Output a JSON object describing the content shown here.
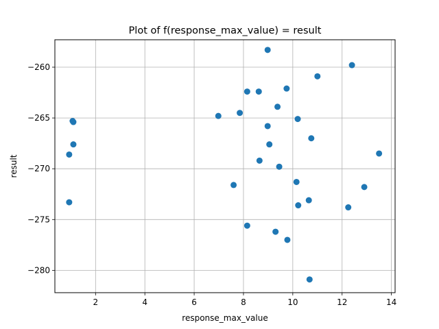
{
  "chart_data": {
    "type": "scatter",
    "title": "Plot of f(response_max_value) = result",
    "xlabel": "response_max_value",
    "ylabel": "result",
    "xlim": [
      0.35,
      14.15
    ],
    "ylim": [
      -282.2,
      -257.3
    ],
    "xticks": [
      2,
      4,
      6,
      8,
      10,
      12,
      14
    ],
    "yticks": [
      -280,
      -275,
      -270,
      -265,
      -260
    ],
    "grid": true,
    "color": "#1f77b4",
    "points": [
      {
        "x": 8.98,
        "y": -258.3
      },
      {
        "x": 12.4,
        "y": -259.8
      },
      {
        "x": 11.0,
        "y": -260.9
      },
      {
        "x": 8.15,
        "y": -262.4
      },
      {
        "x": 8.62,
        "y": -262.4
      },
      {
        "x": 9.75,
        "y": -262.1
      },
      {
        "x": 9.38,
        "y": -263.9
      },
      {
        "x": 1.07,
        "y": -265.3
      },
      {
        "x": 1.1,
        "y": -265.4
      },
      {
        "x": 6.98,
        "y": -264.8
      },
      {
        "x": 7.85,
        "y": -264.5
      },
      {
        "x": 10.2,
        "y": -265.1
      },
      {
        "x": 8.98,
        "y": -265.8
      },
      {
        "x": 10.75,
        "y": -267.0
      },
      {
        "x": 1.1,
        "y": -267.6
      },
      {
        "x": 9.05,
        "y": -267.6
      },
      {
        "x": 0.93,
        "y": -268.6
      },
      {
        "x": 13.5,
        "y": -268.5
      },
      {
        "x": 8.65,
        "y": -269.2
      },
      {
        "x": 9.45,
        "y": -269.8
      },
      {
        "x": 7.6,
        "y": -271.6
      },
      {
        "x": 10.15,
        "y": -271.3
      },
      {
        "x": 12.9,
        "y": -271.8
      },
      {
        "x": 0.93,
        "y": -273.3
      },
      {
        "x": 10.65,
        "y": -273.1
      },
      {
        "x": 10.22,
        "y": -273.6
      },
      {
        "x": 12.25,
        "y": -273.8
      },
      {
        "x": 8.15,
        "y": -275.6
      },
      {
        "x": 9.3,
        "y": -276.2
      },
      {
        "x": 9.78,
        "y": -277.0
      },
      {
        "x": 10.68,
        "y": -280.9
      }
    ]
  }
}
